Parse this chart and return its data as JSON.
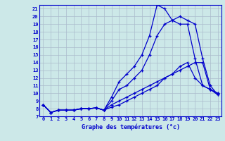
{
  "title": "Graphe des températures (°c)",
  "bg_color": "#cce8e8",
  "grid_color": "#aabbcc",
  "line_color": "#0000cc",
  "xlim": [
    -0.5,
    23.5
  ],
  "ylim": [
    7,
    21.5
  ],
  "xticks": [
    0,
    1,
    2,
    3,
    4,
    5,
    6,
    7,
    8,
    9,
    10,
    11,
    12,
    13,
    14,
    15,
    16,
    17,
    18,
    19,
    20,
    21,
    22,
    23
  ],
  "yticks": [
    7,
    8,
    9,
    10,
    11,
    12,
    13,
    14,
    15,
    16,
    17,
    18,
    19,
    20,
    21
  ],
  "series": [
    [
      8.5,
      7.5,
      7.8,
      7.8,
      7.8,
      8.0,
      8.0,
      8.1,
      7.8,
      8.2,
      8.5,
      9.0,
      9.5,
      10.0,
      10.5,
      11.0,
      12.0,
      12.5,
      13.0,
      13.5,
      14.0,
      14.0,
      10.5,
      10.0
    ],
    [
      8.5,
      7.5,
      7.8,
      7.8,
      7.8,
      8.0,
      8.0,
      8.1,
      7.8,
      8.5,
      9.0,
      9.5,
      10.0,
      10.5,
      11.0,
      11.5,
      12.0,
      12.5,
      13.5,
      14.0,
      12.0,
      11.0,
      10.5,
      10.0
    ],
    [
      8.5,
      7.5,
      7.8,
      7.8,
      7.8,
      8.0,
      8.0,
      8.1,
      7.8,
      9.0,
      10.5,
      11.0,
      12.0,
      13.0,
      15.0,
      17.5,
      19.0,
      19.5,
      20.0,
      19.5,
      19.0,
      14.5,
      11.0,
      9.8
    ],
    [
      8.5,
      7.5,
      7.8,
      7.8,
      7.8,
      8.0,
      8.0,
      8.1,
      7.8,
      9.5,
      11.5,
      12.5,
      13.5,
      15.0,
      17.5,
      21.5,
      21.0,
      19.5,
      19.0,
      19.0,
      14.5,
      11.0,
      10.5,
      9.8
    ]
  ]
}
